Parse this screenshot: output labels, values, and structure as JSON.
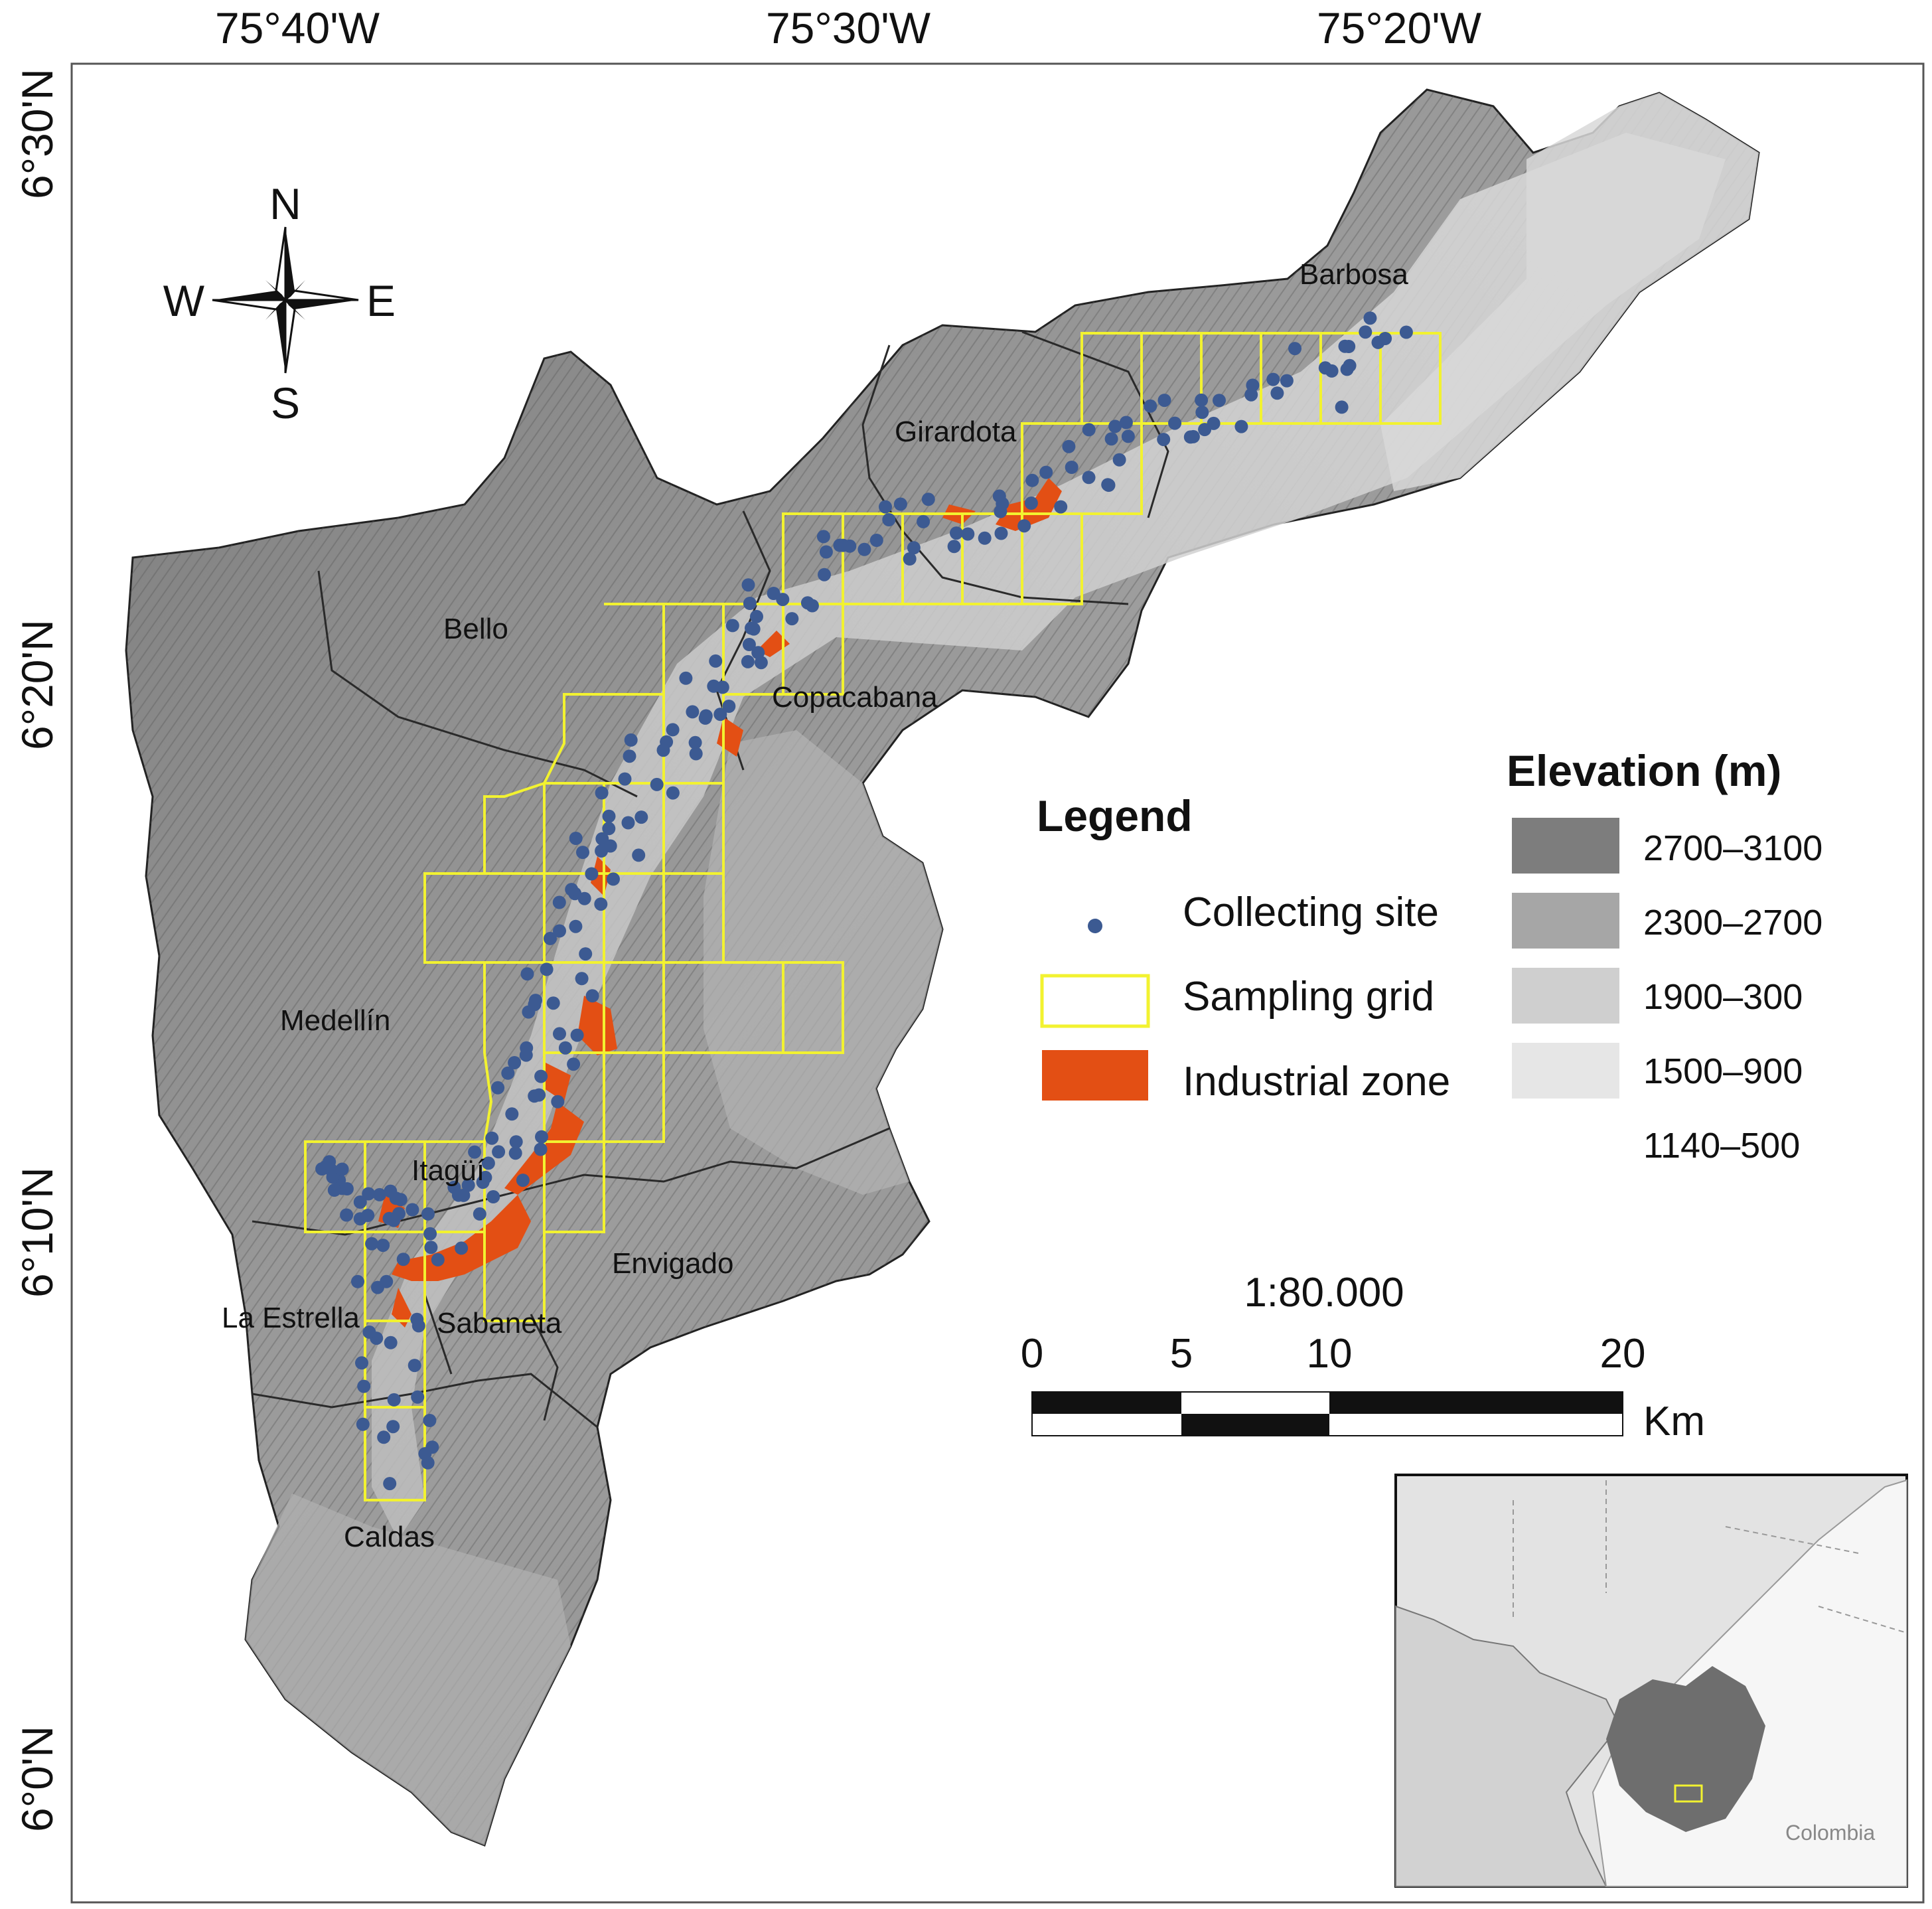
{
  "graticule": {
    "longitude_labels": [
      "75°40'W",
      "75°30'W",
      "75°20'W"
    ],
    "latitude_labels": [
      "6°30'N",
      "6°20'N",
      "6°10'N",
      "6°0'N"
    ]
  },
  "compass": {
    "north": "N",
    "south": "S",
    "east": "E",
    "west": "W"
  },
  "municipalities": [
    "Barbosa",
    "Girardota",
    "Bello",
    "Copacabana",
    "Medellín",
    "Itagüí",
    "Envigado",
    "La Estrella",
    "Sabaneta",
    "Caldas"
  ],
  "legend": {
    "title": "Legend",
    "items": [
      {
        "label": "Collecting site",
        "symbol": "point",
        "color": "#3c5a92"
      },
      {
        "label": "Sampling grid",
        "symbol": "square-outline",
        "color": "#f2f230"
      },
      {
        "label": "Industrial zone",
        "symbol": "filled-square",
        "color": "#e34f14"
      }
    ]
  },
  "elevation": {
    "title": "Elevation (m)",
    "classes": [
      {
        "label": "2700–3100",
        "color": "#7d7d7d"
      },
      {
        "label": "2300–2700",
        "color": "#a6a6a6"
      },
      {
        "label": "1900–300",
        "color": "#cfcfcf"
      },
      {
        "label": "1500–900",
        "color": "#e6e6e6"
      },
      {
        "label": "1140–500",
        "color": "#ffffff"
      }
    ]
  },
  "scale": {
    "ratio": "1:80.000",
    "ticks": [
      "0",
      "5",
      "10",
      "20"
    ],
    "unit": "Km"
  },
  "inset": {
    "label": "Colombia",
    "highlight_color": "#f2f230",
    "region_color": "#6e6e6e"
  },
  "colors": {
    "terrain_dark": "#6f6f6f",
    "terrain_mid": "#9a9a9a",
    "terrain_light": "#c9c9c9",
    "site_point": "#3c5a92",
    "grid_line": "#f2f230",
    "industrial": "#e34f14"
  }
}
